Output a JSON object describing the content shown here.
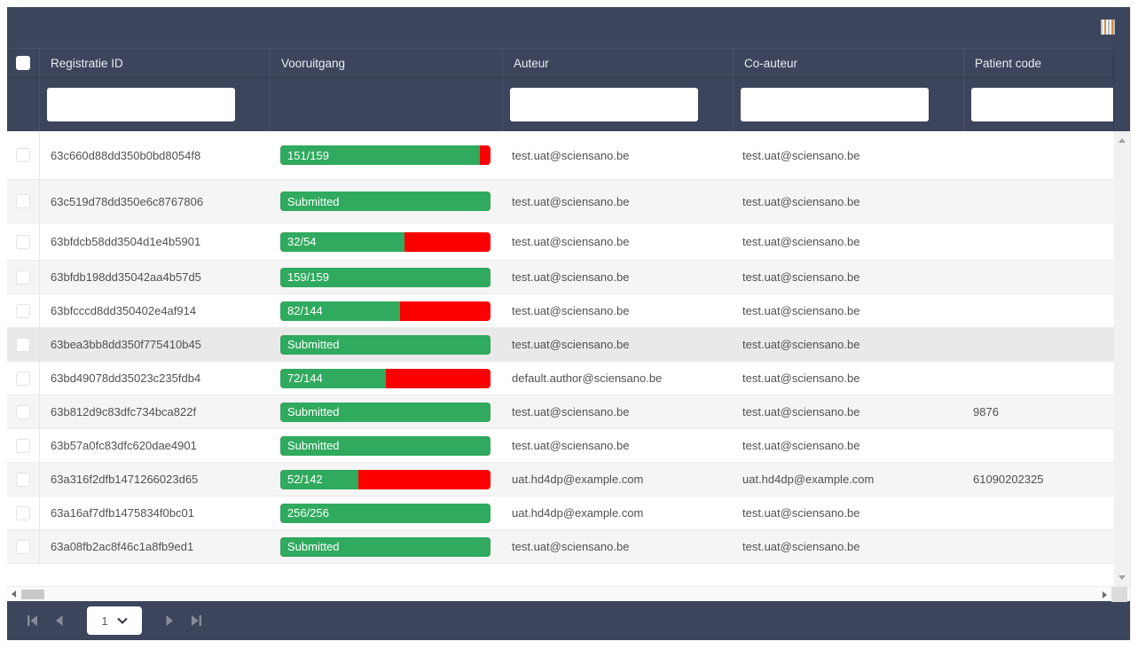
{
  "toolbar": {
    "columns_button": "columns"
  },
  "table": {
    "columns": {
      "registratie_id": "Registratie ID",
      "vooruitgang": "Vooruitgang",
      "auteur": "Auteur",
      "co_auteur": "Co-auteur",
      "patient_code": "Patient code"
    },
    "filters": {
      "registratie_id_value": "",
      "auteur_value": "",
      "co_auteur_value": "",
      "patient_code_value": ""
    }
  },
  "rows": [
    {
      "id": "63c660d88dd350b0bd8054f8",
      "progress_label": "151/159",
      "progress_pct": 95,
      "author": "test.uat@sciensano.be",
      "coauthor": "test.uat@sciensano.be",
      "patient_code": "",
      "highlighted": false
    },
    {
      "id": "63c519d78dd350e6c8767806",
      "progress_label": "Submitted",
      "progress_pct": 100,
      "author": "test.uat@sciensano.be",
      "coauthor": "test.uat@sciensano.be",
      "patient_code": "",
      "highlighted": false
    },
    {
      "id": "63bfdcb58dd3504d1e4b5901",
      "progress_label": "32/54",
      "progress_pct": 59,
      "author": "test.uat@sciensano.be",
      "coauthor": "test.uat@sciensano.be",
      "patient_code": "",
      "highlighted": false
    },
    {
      "id": "63bfdb198dd35042aa4b57d5",
      "progress_label": "159/159",
      "progress_pct": 100,
      "author": "test.uat@sciensano.be",
      "coauthor": "test.uat@sciensano.be",
      "patient_code": "",
      "highlighted": false
    },
    {
      "id": "63bfcccd8dd350402e4af914",
      "progress_label": "82/144",
      "progress_pct": 57,
      "author": "test.uat@sciensano.be",
      "coauthor": "test.uat@sciensano.be",
      "patient_code": "",
      "highlighted": false
    },
    {
      "id": "63bea3bb8dd350f775410b45",
      "progress_label": "Submitted",
      "progress_pct": 100,
      "author": "test.uat@sciensano.be",
      "coauthor": "test.uat@sciensano.be",
      "patient_code": "",
      "highlighted": true
    },
    {
      "id": "63bd49078dd35023c235fdb4",
      "progress_label": "72/144",
      "progress_pct": 50,
      "author": "default.author@sciensano.be",
      "coauthor": "test.uat@sciensano.be",
      "patient_code": "",
      "highlighted": false
    },
    {
      "id": "63b812d9c83dfc734bca822f",
      "progress_label": "Submitted",
      "progress_pct": 100,
      "author": "test.uat@sciensano.be",
      "coauthor": "test.uat@sciensano.be",
      "patient_code": "9876",
      "highlighted": false
    },
    {
      "id": "63b57a0fc83dfc620dae4901",
      "progress_label": "Submitted",
      "progress_pct": 100,
      "author": "test.uat@sciensano.be",
      "coauthor": "test.uat@sciensano.be",
      "patient_code": "",
      "highlighted": false
    },
    {
      "id": "63a316f2dfb1471266023d65",
      "progress_label": "52/142",
      "progress_pct": 37,
      "author": "uat.hd4dp@example.com",
      "coauthor": "uat.hd4dp@example.com",
      "patient_code": "61090202325",
      "highlighted": false
    },
    {
      "id": "63a16af7dfb1475834f0bc01",
      "progress_label": "256/256",
      "progress_pct": 100,
      "author": "uat.hd4dp@example.com",
      "coauthor": "test.uat@sciensano.be",
      "patient_code": "",
      "highlighted": false
    },
    {
      "id": "63a08fb2ac8f46c1a8fb9ed1",
      "progress_label": "Submitted",
      "progress_pct": 100,
      "author": "test.uat@sciensano.be",
      "coauthor": "test.uat@sciensano.be",
      "patient_code": "",
      "highlighted": false
    }
  ],
  "pagination": {
    "current_page": "1"
  },
  "colors": {
    "header_bg": "#3d455c",
    "progress_green": "#2faa5e",
    "progress_red": "#fb0000",
    "row_alt": "#f5f5f5",
    "row_highlight": "#e9e9e9"
  }
}
